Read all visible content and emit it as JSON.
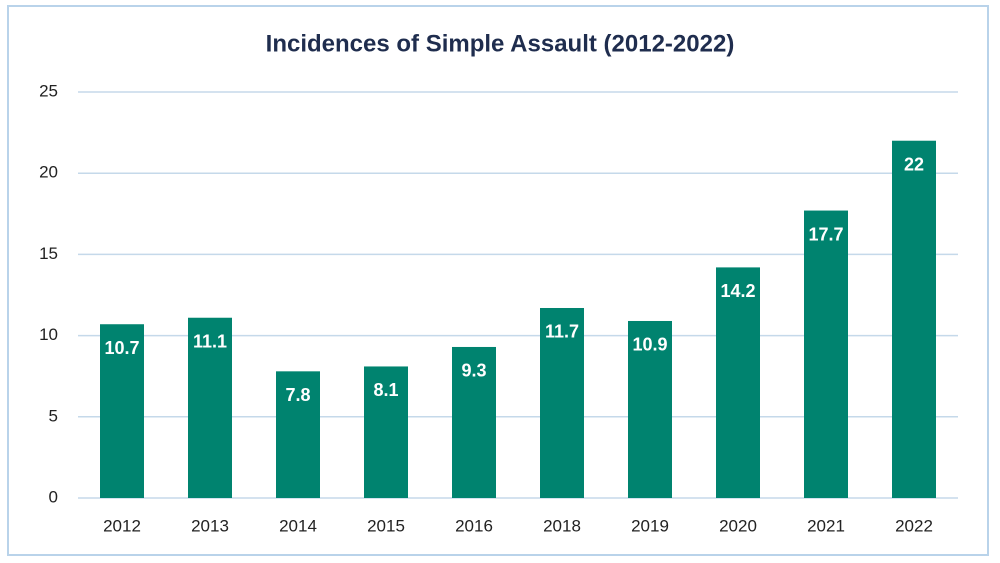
{
  "chart_data": {
    "type": "bar",
    "title": "Incidences of Simple Assault (2012-2022)",
    "categories": [
      "2012",
      "2013",
      "2014",
      "2015",
      "2016",
      "2018",
      "2019",
      "2020",
      "2021",
      "2022"
    ],
    "values": [
      10.7,
      11.1,
      7.8,
      8.1,
      9.3,
      11.7,
      10.9,
      14.2,
      17.7,
      22
    ],
    "color": "#00836f",
    "ylim": [
      0,
      25
    ],
    "yticks": [
      0,
      5,
      10,
      15,
      20,
      25
    ],
    "grid": true
  }
}
